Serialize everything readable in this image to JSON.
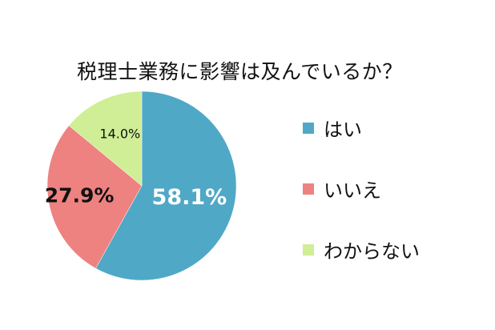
{
  "chart_data": {
    "type": "pie",
    "title": "税理士業務に影響は及んでいるか？",
    "categories": [
      "はい",
      "いいえ",
      "わからない"
    ],
    "values": [
      58.1,
      27.9,
      14.0
    ],
    "data_labels": [
      "58.1%",
      "27.9%",
      "14.0%"
    ],
    "colors": [
      "#4fa8c6",
      "#ee8280",
      "#cfee96"
    ],
    "legend_position": "right",
    "start_angle": "12 o'clock",
    "direction": "clockwise"
  }
}
